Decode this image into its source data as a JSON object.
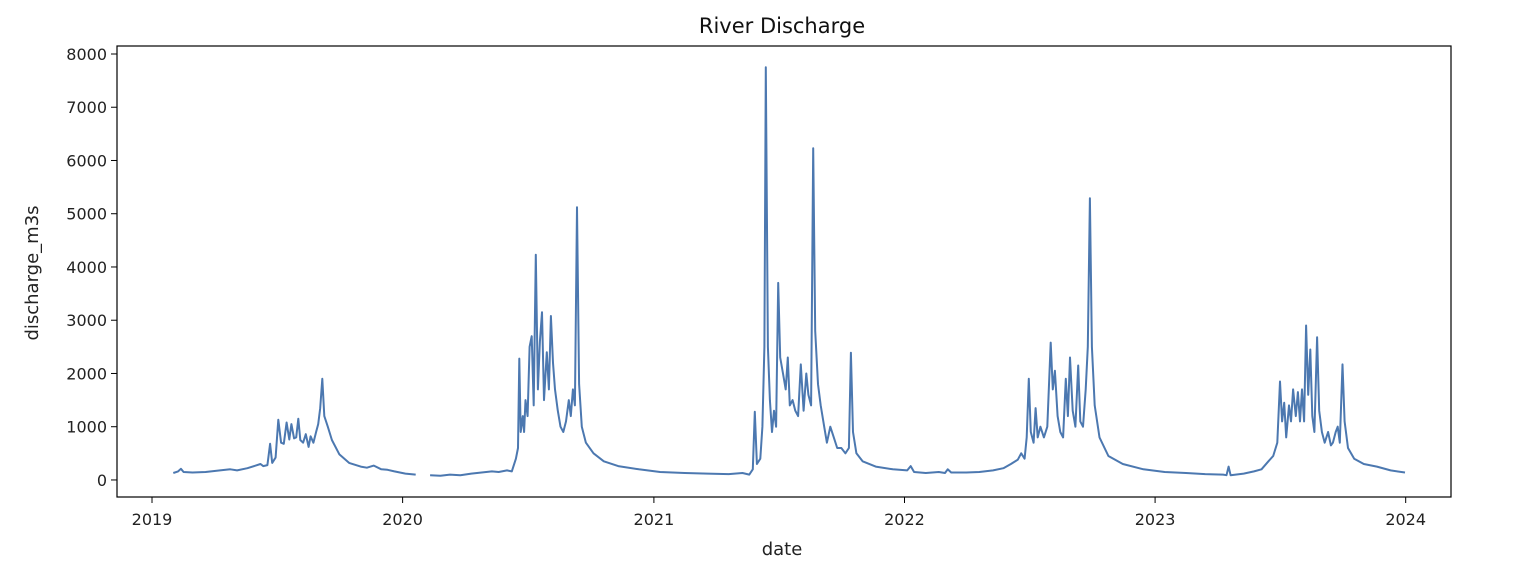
{
  "chart_data": {
    "type": "line",
    "title": "River Discharge",
    "xlabel": "date",
    "ylabel": "discharge_m3s",
    "x_ticks": [
      "2019",
      "2020",
      "2021",
      "2022",
      "2023",
      "2024"
    ],
    "y_ticks": [
      "0",
      "1000",
      "2000",
      "3000",
      "4000",
      "5000",
      "6000",
      "7000",
      "8000"
    ],
    "xlim": [
      "2018-11-11",
      "2024-03-07"
    ],
    "ylim": [
      -320,
      8150
    ],
    "grid": false,
    "line_color": "#4c78b0",
    "series": [
      {
        "segments": [
          [
            [
              "2019-02-01",
              130
            ],
            [
              "2019-02-08",
              160
            ],
            [
              "2019-02-12",
              210
            ],
            [
              "2019-02-16",
              150
            ],
            [
              "2019-03-01",
              140
            ],
            [
              "2019-03-20",
              150
            ],
            [
              "2019-04-10",
              180
            ],
            [
              "2019-04-25",
              200
            ],
            [
              "2019-05-05",
              180
            ],
            [
              "2019-05-20",
              220
            ],
            [
              "2019-06-01",
              270
            ],
            [
              "2019-06-08",
              300
            ],
            [
              "2019-06-12",
              260
            ],
            [
              "2019-06-18",
              280
            ],
            [
              "2019-06-22",
              680
            ],
            [
              "2019-06-25",
              320
            ],
            [
              "2019-06-30",
              420
            ],
            [
              "2019-07-04",
              1130
            ],
            [
              "2019-07-08",
              700
            ],
            [
              "2019-07-12",
              680
            ],
            [
              "2019-07-16",
              1080
            ],
            [
              "2019-07-20",
              760
            ],
            [
              "2019-07-23",
              1050
            ],
            [
              "2019-07-27",
              780
            ],
            [
              "2019-07-30",
              800
            ],
            [
              "2019-08-02",
              1150
            ],
            [
              "2019-08-05",
              750
            ],
            [
              "2019-08-09",
              700
            ],
            [
              "2019-08-13",
              860
            ],
            [
              "2019-08-17",
              620
            ],
            [
              "2019-08-20",
              820
            ],
            [
              "2019-08-24",
              700
            ],
            [
              "2019-08-28",
              900
            ],
            [
              "2019-08-31",
              1050
            ],
            [
              "2019-09-03",
              1350
            ],
            [
              "2019-09-06",
              1900
            ],
            [
              "2019-09-09",
              1200
            ],
            [
              "2019-09-14",
              1000
            ],
            [
              "2019-09-20",
              750
            ],
            [
              "2019-10-01",
              480
            ],
            [
              "2019-10-15",
              320
            ],
            [
              "2019-11-01",
              250
            ],
            [
              "2019-11-10",
              230
            ],
            [
              "2019-11-20",
              270
            ],
            [
              "2019-12-01",
              200
            ],
            [
              "2019-12-10",
              190
            ],
            [
              "2019-12-20",
              160
            ],
            [
              "2020-01-05",
              120
            ],
            [
              "2020-01-20",
              100
            ]
          ],
          [
            [
              "2020-02-10",
              90
            ],
            [
              "2020-02-25",
              80
            ],
            [
              "2020-03-10",
              100
            ],
            [
              "2020-03-25",
              90
            ],
            [
              "2020-04-10",
              120
            ],
            [
              "2020-04-25",
              140
            ],
            [
              "2020-05-10",
              160
            ],
            [
              "2020-05-20",
              150
            ],
            [
              "2020-06-01",
              180
            ],
            [
              "2020-06-08",
              160
            ],
            [
              "2020-06-14",
              400
            ],
            [
              "2020-06-17",
              600
            ],
            [
              "2020-06-19",
              2280
            ],
            [
              "2020-06-21",
              900
            ],
            [
              "2020-06-24",
              1200
            ],
            [
              "2020-06-26",
              900
            ],
            [
              "2020-06-28",
              1500
            ],
            [
              "2020-07-01",
              1200
            ],
            [
              "2020-07-04",
              2500
            ],
            [
              "2020-07-07",
              2700
            ],
            [
              "2020-07-10",
              1400
            ],
            [
              "2020-07-13",
              4230
            ],
            [
              "2020-07-16",
              1700
            ],
            [
              "2020-07-19",
              2600
            ],
            [
              "2020-07-22",
              3150
            ],
            [
              "2020-07-25",
              1500
            ],
            [
              "2020-07-29",
              2400
            ],
            [
              "2020-08-01",
              1700
            ],
            [
              "2020-08-04",
              3080
            ],
            [
              "2020-08-07",
              2200
            ],
            [
              "2020-08-10",
              1700
            ],
            [
              "2020-08-14",
              1300
            ],
            [
              "2020-08-18",
              1000
            ],
            [
              "2020-08-22",
              900
            ],
            [
              "2020-08-26",
              1100
            ],
            [
              "2020-08-30",
              1500
            ],
            [
              "2020-09-02",
              1200
            ],
            [
              "2020-09-05",
              1700
            ],
            [
              "2020-09-08",
              1400
            ],
            [
              "2020-09-11",
              5120
            ],
            [
              "2020-09-14",
              1800
            ],
            [
              "2020-09-18",
              1000
            ],
            [
              "2020-09-24",
              700
            ],
            [
              "2020-10-05",
              500
            ],
            [
              "2020-10-20",
              350
            ],
            [
              "2020-11-10",
              260
            ],
            [
              "2020-12-10",
              200
            ],
            [
              "2021-01-10",
              150
            ],
            [
              "2021-02-15",
              130
            ],
            [
              "2021-03-20",
              120
            ],
            [
              "2021-04-20",
              110
            ],
            [
              "2021-05-10",
              130
            ],
            [
              "2021-05-20",
              100
            ],
            [
              "2021-05-25",
              200
            ],
            [
              "2021-05-28",
              1280
            ],
            [
              "2021-05-31",
              300
            ],
            [
              "2021-06-05",
              400
            ],
            [
              "2021-06-08",
              1000
            ],
            [
              "2021-06-11",
              2500
            ],
            [
              "2021-06-13",
              7750
            ],
            [
              "2021-06-16",
              2500
            ],
            [
              "2021-06-19",
              1500
            ],
            [
              "2021-06-22",
              900
            ],
            [
              "2021-06-25",
              1300
            ],
            [
              "2021-06-28",
              1000
            ],
            [
              "2021-07-01",
              3700
            ],
            [
              "2021-07-04",
              2300
            ],
            [
              "2021-07-08",
              2000
            ],
            [
              "2021-07-12",
              1700
            ],
            [
              "2021-07-15",
              2300
            ],
            [
              "2021-07-18",
              1400
            ],
            [
              "2021-07-22",
              1500
            ],
            [
              "2021-07-26",
              1300
            ],
            [
              "2021-07-30",
              1200
            ],
            [
              "2021-08-03",
              2170
            ],
            [
              "2021-08-07",
              1300
            ],
            [
              "2021-08-11",
              2000
            ],
            [
              "2021-08-14",
              1600
            ],
            [
              "2021-08-18",
              1400
            ],
            [
              "2021-08-21",
              6230
            ],
            [
              "2021-08-24",
              2800
            ],
            [
              "2021-08-28",
              1800
            ],
            [
              "2021-09-01",
              1400
            ],
            [
              "2021-09-06",
              1000
            ],
            [
              "2021-09-10",
              700
            ],
            [
              "2021-09-15",
              1000
            ],
            [
              "2021-09-20",
              800
            ],
            [
              "2021-09-25",
              600
            ],
            [
              "2021-10-01",
              600
            ],
            [
              "2021-10-07",
              500
            ],
            [
              "2021-10-12",
              600
            ],
            [
              "2021-10-15",
              2390
            ],
            [
              "2021-10-18",
              900
            ],
            [
              "2021-10-23",
              500
            ],
            [
              "2021-11-01",
              350
            ],
            [
              "2021-11-20",
              250
            ],
            [
              "2021-12-15",
              200
            ],
            [
              "2022-01-05",
              180
            ],
            [
              "2022-01-10",
              260
            ],
            [
              "2022-01-15",
              150
            ],
            [
              "2022-02-01",
              130
            ],
            [
              "2022-02-20",
              150
            ],
            [
              "2022-03-01",
              130
            ],
            [
              "2022-03-05",
              200
            ],
            [
              "2022-03-10",
              140
            ],
            [
              "2022-04-01",
              140
            ],
            [
              "2022-04-20",
              150
            ],
            [
              "2022-05-10",
              180
            ],
            [
              "2022-05-25",
              220
            ],
            [
              "2022-06-05",
              300
            ],
            [
              "2022-06-15",
              380
            ],
            [
              "2022-06-20",
              500
            ],
            [
              "2022-06-25",
              400
            ],
            [
              "2022-06-28",
              800
            ],
            [
              "2022-07-01",
              1900
            ],
            [
              "2022-07-04",
              900
            ],
            [
              "2022-07-08",
              700
            ],
            [
              "2022-07-11",
              1350
            ],
            [
              "2022-07-14",
              800
            ],
            [
              "2022-07-18",
              1000
            ],
            [
              "2022-07-23",
              800
            ],
            [
              "2022-07-28",
              1000
            ],
            [
              "2022-08-02",
              2580
            ],
            [
              "2022-08-05",
              1700
            ],
            [
              "2022-08-08",
              2050
            ],
            [
              "2022-08-12",
              1200
            ],
            [
              "2022-08-16",
              900
            ],
            [
              "2022-08-20",
              800
            ],
            [
              "2022-08-24",
              1900
            ],
            [
              "2022-08-27",
              1200
            ],
            [
              "2022-08-30",
              2300
            ],
            [
              "2022-09-03",
              1300
            ],
            [
              "2022-09-07",
              1000
            ],
            [
              "2022-09-11",
              2150
            ],
            [
              "2022-09-14",
              1100
            ],
            [
              "2022-09-18",
              1000
            ],
            [
              "2022-09-22",
              1700
            ],
            [
              "2022-09-25",
              2500
            ],
            [
              "2022-09-28",
              5290
            ],
            [
              "2022-10-01",
              2500
            ],
            [
              "2022-10-05",
              1400
            ],
            [
              "2022-10-12",
              800
            ],
            [
              "2022-10-25",
              450
            ],
            [
              "2022-11-15",
              300
            ],
            [
              "2022-12-15",
              200
            ],
            [
              "2023-01-15",
              150
            ],
            [
              "2023-02-15",
              130
            ],
            [
              "2023-03-15",
              110
            ],
            [
              "2023-04-10",
              100
            ],
            [
              "2023-04-15",
              90
            ],
            [
              "2023-04-18",
              250
            ],
            [
              "2023-04-21",
              90
            ],
            [
              "2023-05-10",
              120
            ],
            [
              "2023-05-25",
              160
            ],
            [
              "2023-06-05",
              200
            ],
            [
              "2023-06-15",
              350
            ],
            [
              "2023-06-22",
              450
            ],
            [
              "2023-06-28",
              700
            ],
            [
              "2023-07-02",
              1850
            ],
            [
              "2023-07-05",
              1100
            ],
            [
              "2023-07-08",
              1450
            ],
            [
              "2023-07-11",
              800
            ],
            [
              "2023-07-15",
              1400
            ],
            [
              "2023-07-18",
              1100
            ],
            [
              "2023-07-21",
              1700
            ],
            [
              "2023-07-25",
              1200
            ],
            [
              "2023-07-28",
              1650
            ],
            [
              "2023-07-31",
              1100
            ],
            [
              "2023-08-03",
              1700
            ],
            [
              "2023-08-06",
              1100
            ],
            [
              "2023-08-09",
              2900
            ],
            [
              "2023-08-12",
              1600
            ],
            [
              "2023-08-15",
              2450
            ],
            [
              "2023-08-18",
              1200
            ],
            [
              "2023-08-21",
              900
            ],
            [
              "2023-08-25",
              2680
            ],
            [
              "2023-08-28",
              1300
            ],
            [
              "2023-09-01",
              900
            ],
            [
              "2023-09-05",
              700
            ],
            [
              "2023-09-10",
              900
            ],
            [
              "2023-09-14",
              650
            ],
            [
              "2023-09-17",
              700
            ],
            [
              "2023-09-21",
              900
            ],
            [
              "2023-09-24",
              1000
            ],
            [
              "2023-09-27",
              700
            ],
            [
              "2023-10-01",
              2170
            ],
            [
              "2023-10-04",
              1100
            ],
            [
              "2023-10-09",
              600
            ],
            [
              "2023-10-18",
              400
            ],
            [
              "2023-11-01",
              300
            ],
            [
              "2023-11-20",
              250
            ],
            [
              "2023-12-10",
              180
            ],
            [
              "2023-12-31",
              140
            ]
          ]
        ]
      }
    ]
  }
}
